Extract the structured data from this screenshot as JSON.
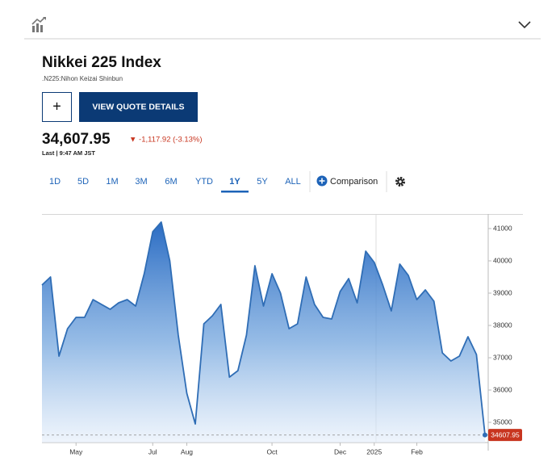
{
  "quote": {
    "title": "Nikkei 225 Index",
    "subtitle": ".N225:Nihon Keizai Shinbun",
    "add_button": "+",
    "button": "VIEW QUOTE DETAILS",
    "price": "34,607.95",
    "change": "▼ -1,117.92 (-3.13%)",
    "last": "Last | 9:47 AM JST"
  },
  "tabs": [
    "1D",
    "5D",
    "1M",
    "3M",
    "6M",
    "YTD",
    "1Y",
    "5Y",
    "ALL"
  ],
  "selected_tab": "1Y",
  "comparison": "Comparison",
  "chart_data": {
    "type": "area",
    "categories": [
      null,
      null,
      null,
      null,
      "May",
      null,
      null,
      null,
      null,
      null,
      null,
      null,
      null,
      "Jul",
      null,
      null,
      null,
      "Aug",
      null,
      null,
      null,
      null,
      null,
      null,
      null,
      null,
      null,
      "Oct",
      null,
      null,
      null,
      null,
      null,
      null,
      null,
      "Dec",
      null,
      null,
      null,
      "2025",
      null,
      null,
      null,
      null,
      "Feb",
      null,
      null,
      null,
      null,
      null,
      null,
      null,
      null
    ],
    "values": [
      39250,
      39500,
      37050,
      37900,
      38250,
      38250,
      38800,
      38650,
      38500,
      38700,
      38800,
      38600,
      39600,
      40900,
      41200,
      40000,
      37700,
      35900,
      34950,
      38050,
      38300,
      38650,
      36400,
      36600,
      37700,
      39850,
      38600,
      39600,
      39000,
      37900,
      38050,
      39500,
      38650,
      38250,
      38200,
      39050,
      39450,
      38700,
      40300,
      39950,
      39250,
      38450,
      39900,
      39550,
      38800,
      39100,
      38750,
      37150,
      36900,
      37050,
      37650,
      37100,
      34607.95
    ],
    "color": "#2f6db5",
    "last_label_color": "#c8351f",
    "ylim": [
      34375,
      41450
    ],
    "yticks": [
      35000,
      36000,
      37000,
      38000,
      39000,
      40000,
      41000
    ],
    "y_axis_side": "right"
  }
}
